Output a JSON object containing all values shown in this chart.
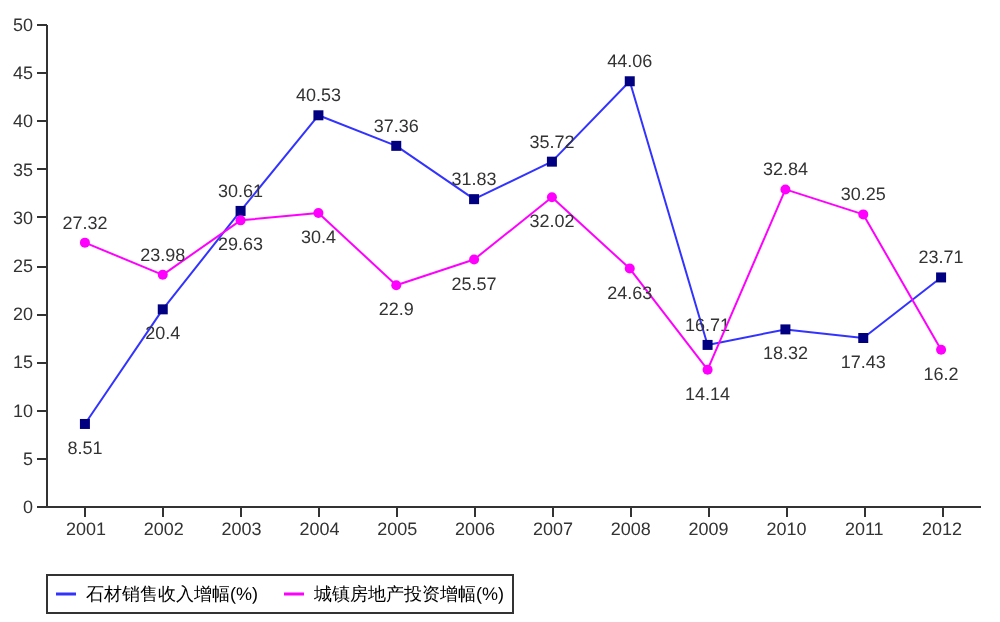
{
  "chart_data": {
    "type": "line",
    "categories": [
      "2001",
      "2002",
      "2003",
      "2004",
      "2005",
      "2006",
      "2007",
      "2008",
      "2009",
      "2010",
      "2011",
      "2012"
    ],
    "series": [
      {
        "name": "石材销售收入增幅(%)",
        "color": "#3333ff",
        "marker": "square",
        "values": [
          8.51,
          20.4,
          30.61,
          40.53,
          37.36,
          31.83,
          35.72,
          44.06,
          16.71,
          18.32,
          17.43,
          23.71
        ]
      },
      {
        "name": "城镇房地产投资增幅(%)",
        "color": "#ff00ff",
        "marker": "circle",
        "values": [
          27.32,
          23.98,
          29.63,
          30.4,
          22.9,
          25.57,
          32.02,
          24.63,
          14.14,
          32.84,
          30.25,
          16.2
        ]
      }
    ],
    "ylim": [
      0,
      50
    ],
    "yticks": [
      0,
      5,
      10,
      15,
      20,
      25,
      30,
      35,
      40,
      45,
      50
    ],
    "data_labels": true,
    "legend": "bottom",
    "grid": false,
    "line_style": "solid"
  }
}
